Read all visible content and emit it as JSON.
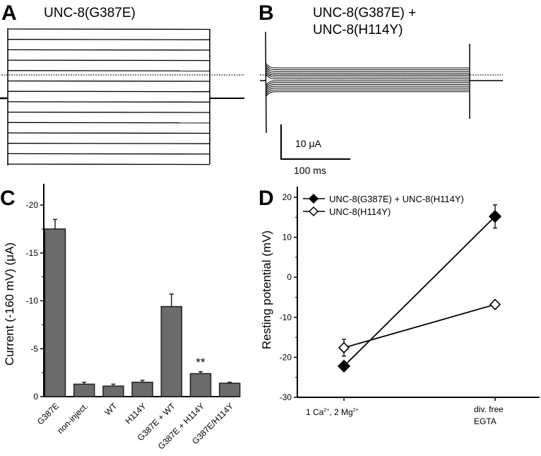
{
  "panels": {
    "A": {
      "label": "A",
      "title": "UNC-8(G387E)"
    },
    "B": {
      "label": "B",
      "title_line1": "UNC-8(G387E) +",
      "title_line2": "UNC-8(H114Y)",
      "scale_current": "10 μA",
      "scale_time": "100 ms"
    },
    "C": {
      "label": "C"
    },
    "D": {
      "label": "D"
    }
  },
  "chart_data": [
    {
      "panel": "A",
      "type": "line",
      "description_printed": "UNC-8(G387E)"
    },
    {
      "panel": "B",
      "type": "line",
      "scale_bar": {
        "current": "10 μA",
        "time": "100 ms"
      }
    },
    {
      "panel": "C",
      "type": "bar",
      "ylabel": "Current (-160 mV) (μA)",
      "ylim": [
        0,
        -22
      ],
      "yticks": [
        "-20",
        "-15",
        "-10",
        "-5",
        "0"
      ],
      "ytick_values": [
        -20,
        -15,
        -10,
        -5,
        0
      ],
      "categories": [
        "G387E",
        "non-inject.",
        "WT",
        "H114Y",
        "G387E + WT",
        "G387E + H114Y",
        "G387E/H114Y"
      ],
      "values": [
        -17.5,
        -1.3,
        -1.1,
        -1.5,
        -9.4,
        -2.4,
        -1.4
      ],
      "errors": [
        1.0,
        0.2,
        0.2,
        0.2,
        1.3,
        0.2,
        0.1
      ],
      "annotations": [
        {
          "category": "G387E + H114Y",
          "text": "**"
        }
      ],
      "bar_color": "#6b6b6b"
    },
    {
      "panel": "D",
      "type": "line",
      "ylabel": "Resting potential (mV)",
      "ylim": [
        -30,
        22
      ],
      "yticks": [
        "20",
        "10",
        "0",
        "-10",
        "-20",
        "-30"
      ],
      "ytick_values": [
        20,
        10,
        0,
        -10,
        -20,
        -30
      ],
      "categories": [
        "1 Ca2+, 2 Mg2+",
        "div. free EGTA"
      ],
      "xtick1": {
        "main1": "1 Ca",
        "sup1": "2+",
        "main2": ", 2 Mg",
        "sup2": "2+"
      },
      "xtick2": {
        "line1": "div. free",
        "line2": "EGTA"
      },
      "legend_placement": "top-left",
      "series": [
        {
          "name": "UNC-8(G387E) + UNC-8(H114Y)",
          "marker": "filled-diamond",
          "values": [
            -22.2,
            15.2
          ],
          "errors": [
            0.6,
            2.9
          ]
        },
        {
          "name": "UNC-8(H114Y)",
          "marker": "open-diamond",
          "values": [
            -17.6,
            -6.8
          ],
          "errors": [
            2.1,
            0.4
          ]
        }
      ]
    }
  ]
}
